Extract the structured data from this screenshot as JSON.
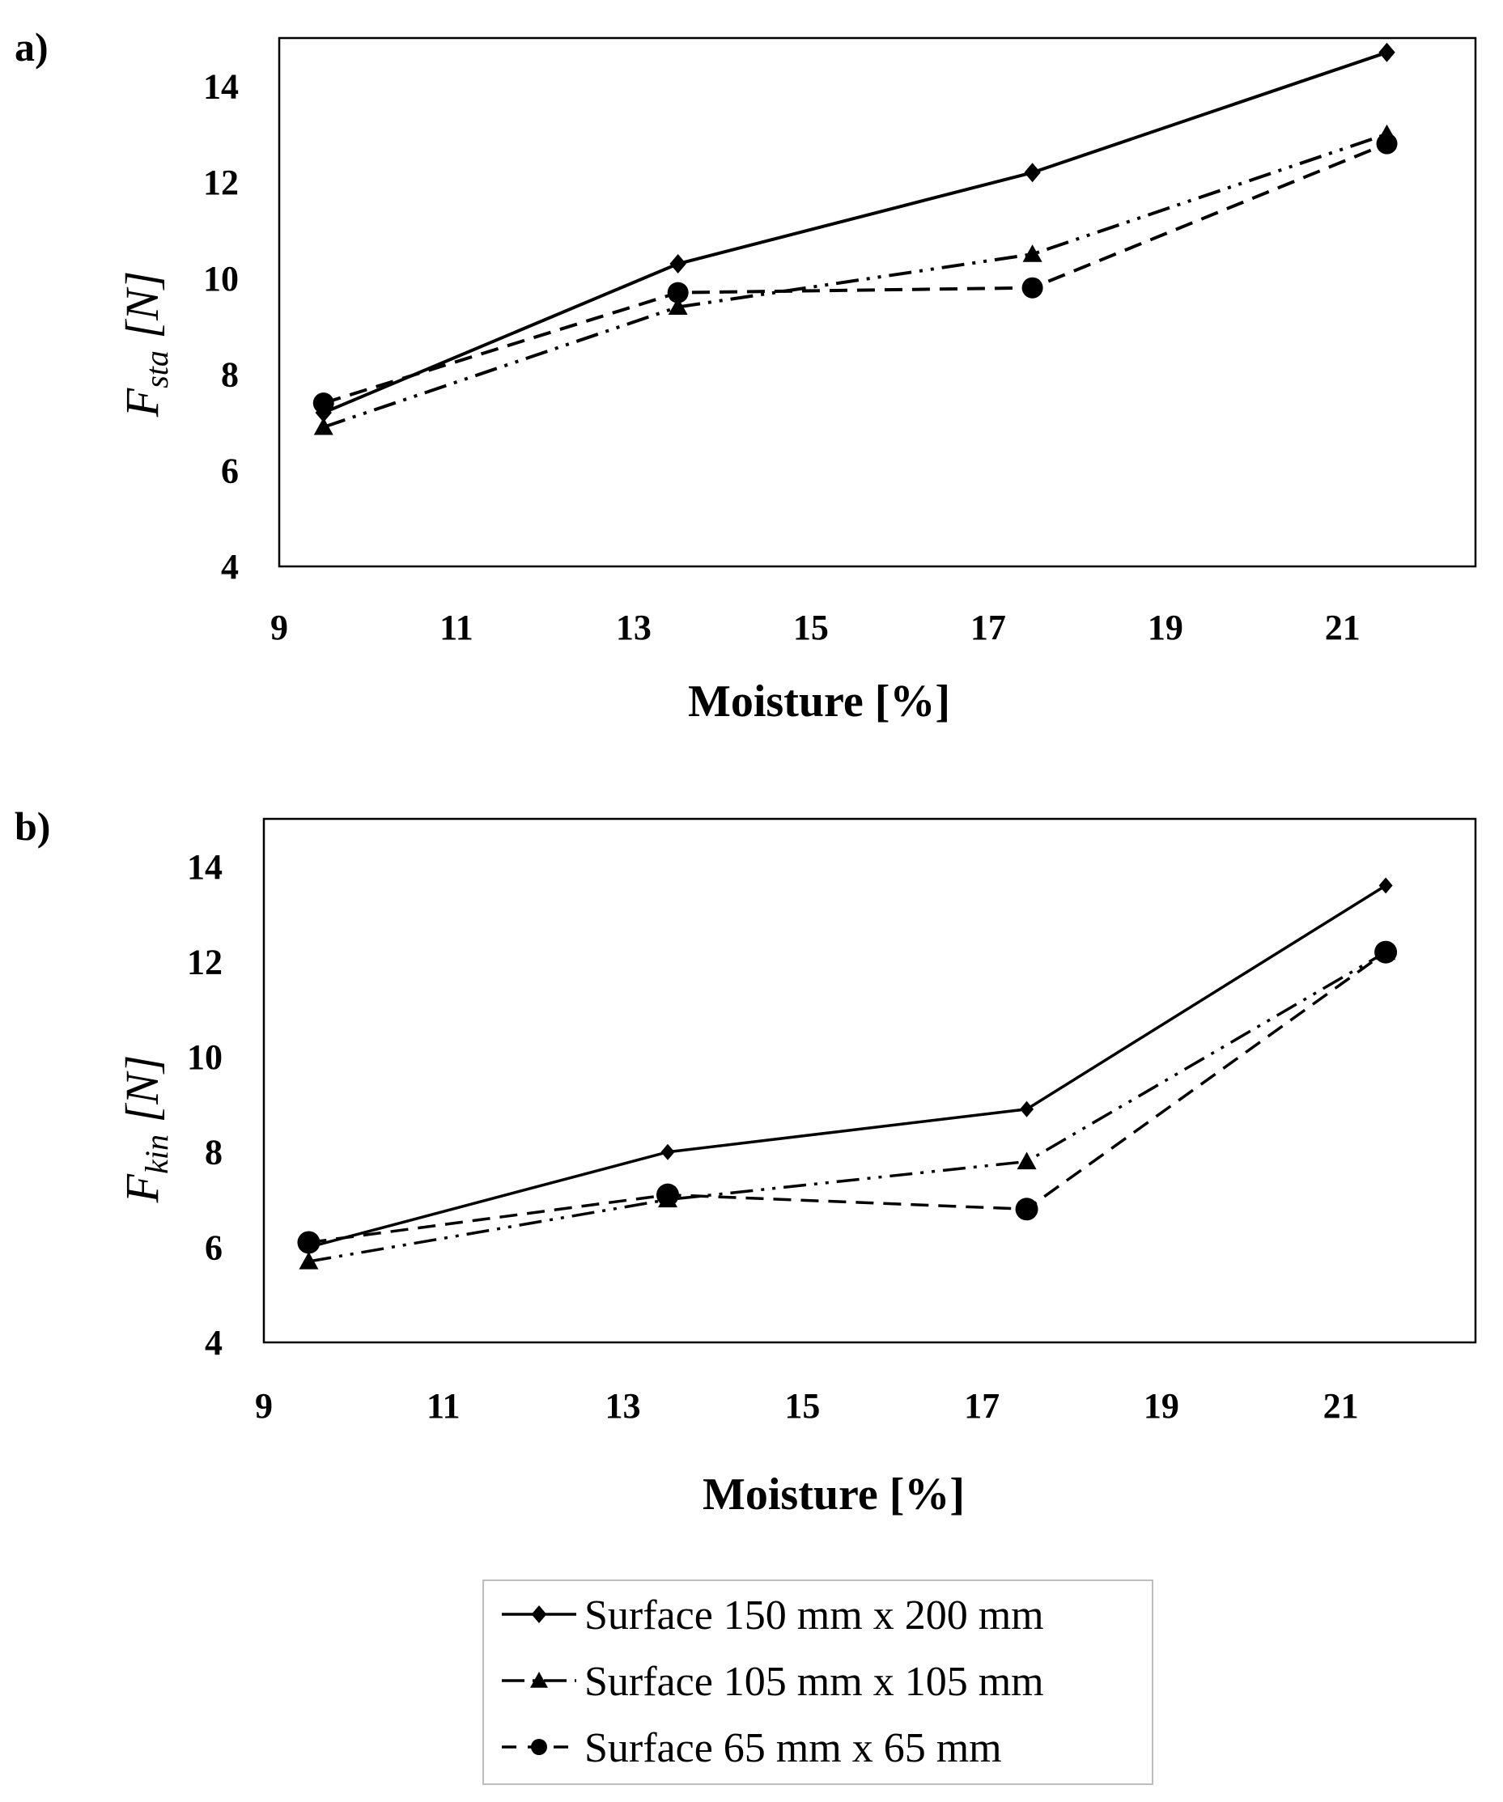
{
  "chart_data": [
    {
      "type": "line",
      "panel_label": "a)",
      "title": "",
      "xlabel": "Moisture [%]",
      "ylabel_main": "F",
      "ylabel_sub": "sta",
      "ylabel_unit": " [N]",
      "xlim": [
        9,
        22.5
      ],
      "ylim": [
        4,
        15
      ],
      "xticks": [
        9,
        11,
        13,
        15,
        17,
        19,
        21
      ],
      "yticks": [
        4,
        6,
        8,
        10,
        12,
        14
      ],
      "x": [
        9.5,
        13.5,
        17.5,
        21.5
      ],
      "series": [
        {
          "name": "Surface 150 mm x 200 mm",
          "marker": "diamond",
          "dash": "solid",
          "values": [
            7.2,
            10.3,
            12.2,
            14.7
          ]
        },
        {
          "name": "Surface 105 mm x 105 mm",
          "marker": "triangle",
          "dash": "dashdotdot",
          "values": [
            6.9,
            9.4,
            10.5,
            13.0
          ]
        },
        {
          "name": "Surface 65 mm x 65 mm",
          "marker": "circle",
          "dash": "dashed",
          "values": [
            7.4,
            9.7,
            9.8,
            12.8
          ]
        }
      ],
      "grid": false
    },
    {
      "type": "line",
      "panel_label": "b)",
      "title": "",
      "xlabel": "Moisture [%]",
      "ylabel_main": "F",
      "ylabel_sub": "kin",
      "ylabel_unit": " [N]",
      "xlim": [
        9,
        22.5
      ],
      "ylim": [
        4,
        15
      ],
      "xticks": [
        9,
        11,
        13,
        15,
        17,
        19,
        21
      ],
      "yticks": [
        4,
        6,
        8,
        10,
        12,
        14
      ],
      "x": [
        9.5,
        13.5,
        17.5,
        21.5
      ],
      "series": [
        {
          "name": "Surface 150 mm x 200 mm",
          "marker": "diamond",
          "dash": "solid",
          "values": [
            6.0,
            8.0,
            8.9,
            13.6
          ]
        },
        {
          "name": "Surface 105 mm x 105 mm",
          "marker": "triangle",
          "dash": "dashdotdot",
          "values": [
            5.7,
            7.0,
            7.8,
            12.2
          ]
        },
        {
          "name": "Surface 65 mm x 65 mm",
          "marker": "circle",
          "dash": "dashed",
          "values": [
            6.1,
            7.1,
            6.8,
            12.2
          ]
        }
      ],
      "grid": false
    }
  ],
  "legend": {
    "position": "bottom-center",
    "entries": [
      {
        "label": "Surface 150 mm x 200 mm",
        "marker": "diamond",
        "dash": "solid"
      },
      {
        "label": "Surface 105 mm x 105 mm",
        "marker": "triangle",
        "dash": "dashdotdot"
      },
      {
        "label": "Surface 65 mm x 65 mm",
        "marker": "circle",
        "dash": "dashed"
      }
    ]
  }
}
